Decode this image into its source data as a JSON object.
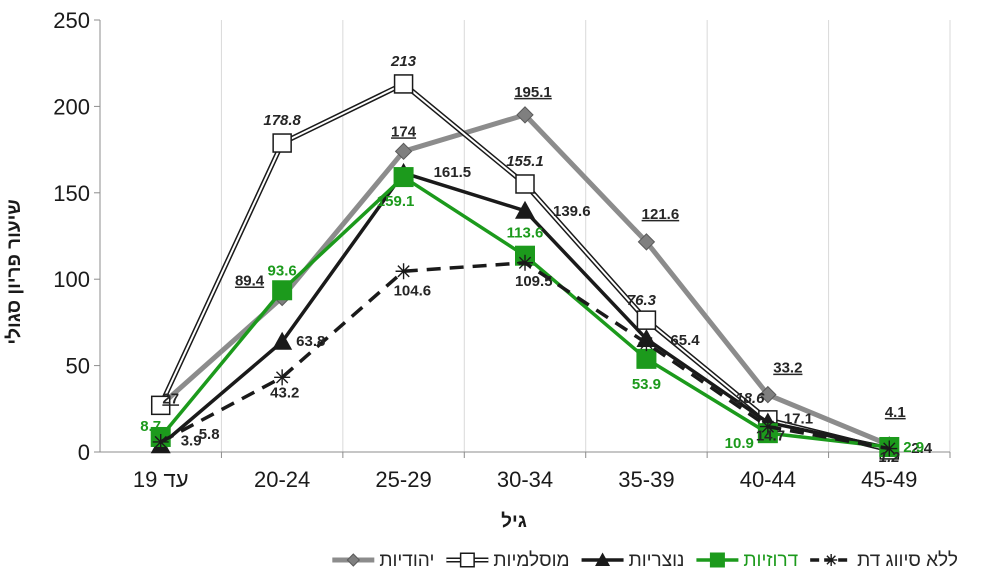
{
  "chart_data": {
    "type": "line",
    "xlabel": "גיל",
    "ylabel": "שיעור פריון סגולי",
    "categories": [
      "עד 19",
      "20-24",
      "25-29",
      "30-34",
      "35-39",
      "40-44",
      "45-49"
    ],
    "ylim": [
      0,
      250
    ],
    "yticks": [
      "0",
      "50",
      "100",
      "150",
      "200",
      "250"
    ],
    "grid": "vertical",
    "legend_position": "bottom",
    "series": [
      {
        "name": "יהודיות",
        "values": [
          27,
          89.4,
          174,
          195.1,
          121.6,
          33.2,
          4.1
        ],
        "labels": [
          "27",
          "89.4",
          "174",
          "195.1",
          "121.6",
          "33.2",
          "4.1"
        ],
        "color": "#8c8c8c",
        "marker": "diamond"
      },
      {
        "name": "מוסלמיות",
        "values": [
          27,
          178.8,
          213,
          155.1,
          76.3,
          18.6,
          1.2
        ],
        "labels": [
          "",
          "178.8",
          "213",
          "155.1",
          "76.3",
          "18.6",
          "1.2"
        ],
        "color": "#1a1a1a",
        "marker": "square-open"
      },
      {
        "name": "נוצריות",
        "values": [
          3.9,
          63.8,
          161.5,
          139.6,
          65.4,
          17.1,
          2.4
        ],
        "labels": [
          "3.9",
          "63.8",
          "161.5",
          "139.6",
          "65.4",
          "17.1",
          "2.4"
        ],
        "color": "#1a1a1a",
        "marker": "triangle"
      },
      {
        "name": "דרוזיות",
        "values": [
          8.7,
          93.6,
          159.1,
          113.6,
          53.9,
          10.9,
          2.9
        ],
        "labels": [
          "8.7",
          "93.6",
          "159.1",
          "113.6",
          "53.9",
          "10.9",
          "2.9"
        ],
        "color": "#1c9a1c",
        "marker": "square"
      },
      {
        "name": "ללא סיווג דת",
        "values": [
          5.8,
          43.2,
          104.6,
          109.5,
          63,
          14.7,
          2
        ],
        "labels": [
          "5.8",
          "43.2",
          "104.6",
          "109.5",
          "",
          "14.7",
          ""
        ],
        "color": "#1a1a1a",
        "marker": "star"
      }
    ]
  }
}
